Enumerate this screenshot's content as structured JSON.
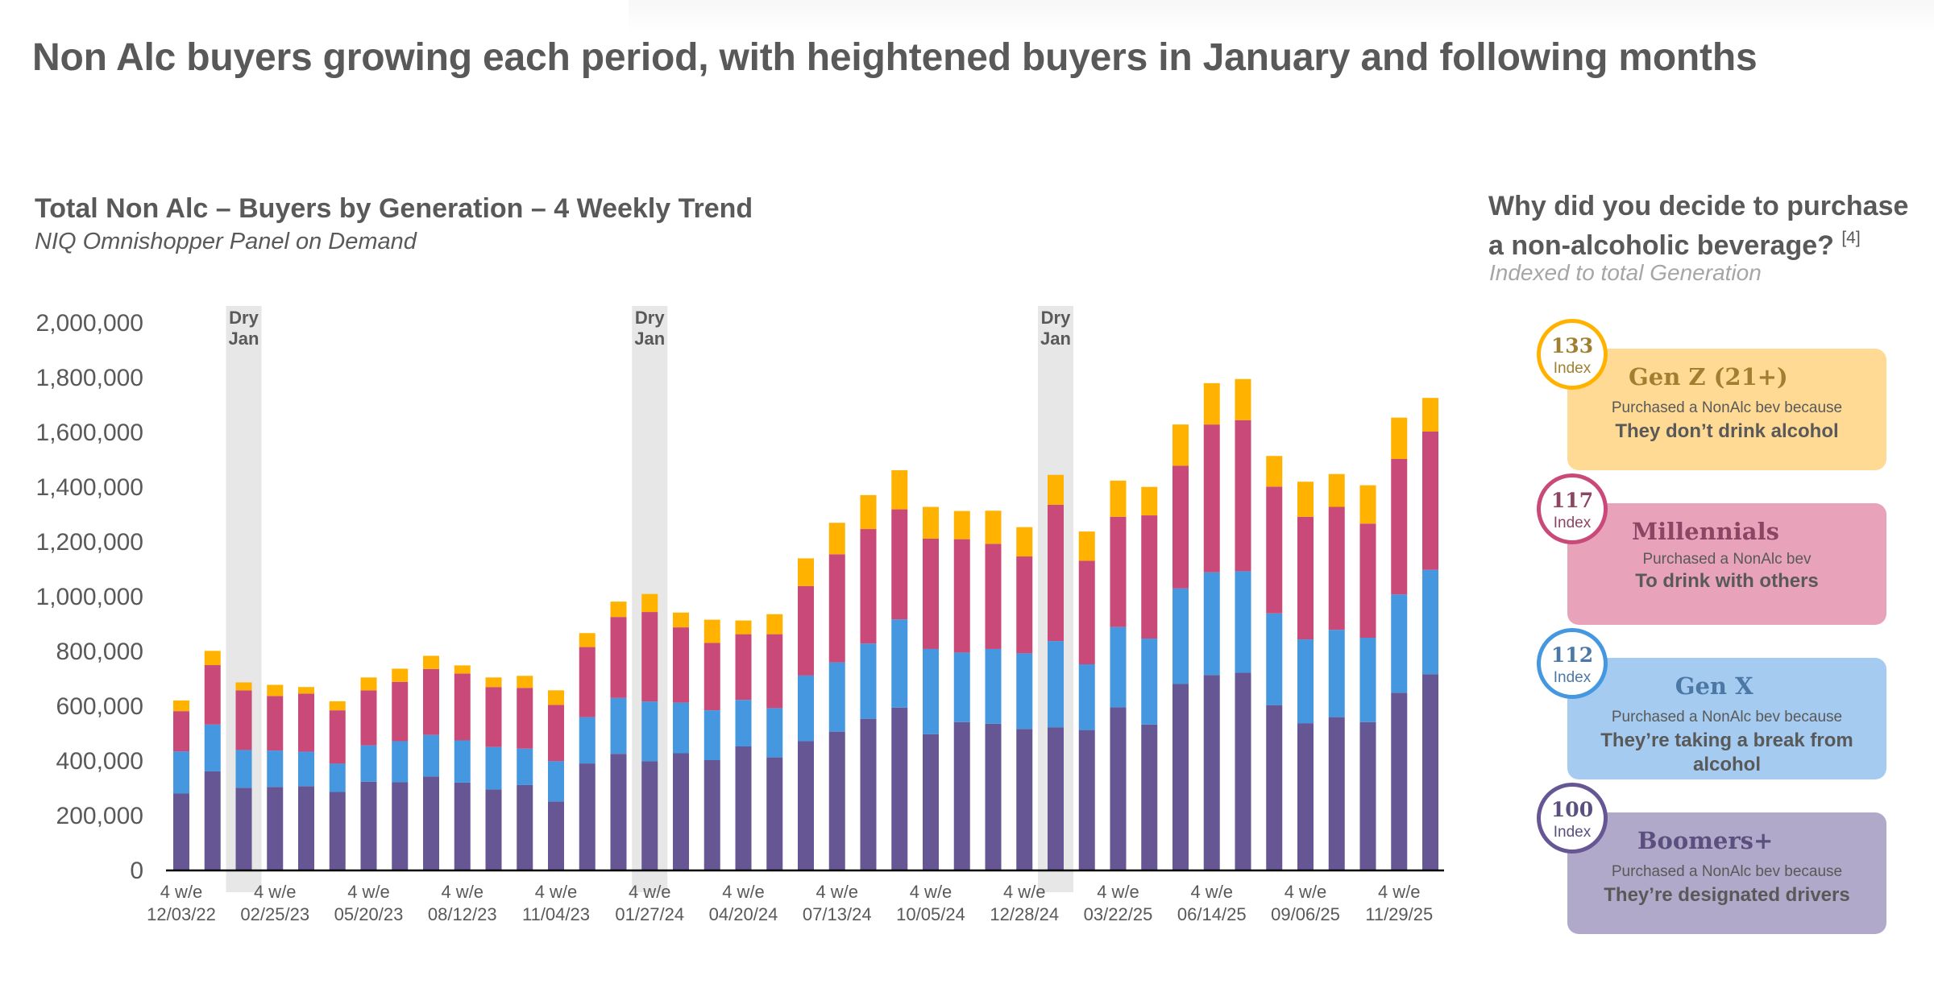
{
  "headline": "Non Alc buyers growing each period, with heightened buyers in January and following months",
  "chart_data": {
    "type": "bar",
    "stacked": true,
    "title": "Total Non Alc – Buyers by Generation – 4 Weekly Trend",
    "subtitle": "NIQ Omnishopper Panel on Demand",
    "xlabel": "",
    "ylabel": "",
    "ylim": [
      0,
      2000000
    ],
    "yticks": [
      0,
      200000,
      400000,
      600000,
      800000,
      1000000,
      1200000,
      1400000,
      1600000,
      1800000,
      2000000
    ],
    "ytick_labels": [
      "0",
      "200,000",
      "400,000",
      "600,000",
      "800,000",
      "1,000,000",
      "1,200,000",
      "1,400,000",
      "1,600,000",
      "1,800,000",
      "2,000,000"
    ],
    "grid": false,
    "legend": "none",
    "x_tick_prefix": "4 w/e",
    "x_tick_labels": [
      {
        "index": 0,
        "date": "12/03/22"
      },
      {
        "index": 3,
        "date": "02/25/23"
      },
      {
        "index": 6,
        "date": "05/20/23"
      },
      {
        "index": 9,
        "date": "08/12/23"
      },
      {
        "index": 12,
        "date": "11/04/23"
      },
      {
        "index": 15,
        "date": "01/27/24"
      },
      {
        "index": 18,
        "date": "04/20/24"
      },
      {
        "index": 21,
        "date": "07/13/24"
      },
      {
        "index": 24,
        "date": "10/05/24"
      },
      {
        "index": 27,
        "date": "12/28/24"
      },
      {
        "index": 30,
        "date": "03/22/25"
      },
      {
        "index": 33,
        "date": "06/14/25"
      },
      {
        "index": 36,
        "date": "09/06/25"
      },
      {
        "index": 39,
        "date": "11/29/25"
      }
    ],
    "annotations": [
      {
        "label_line1": "Dry",
        "label_line2": "Jan",
        "index": 2
      },
      {
        "label_line1": "Dry",
        "label_line2": "Jan",
        "index": 15
      },
      {
        "label_line1": "Dry",
        "label_line2": "Jan",
        "index": 28
      }
    ],
    "bar_count": 41,
    "series": [
      {
        "name": "Boomers+",
        "color": "#665693",
        "values": [
          278000,
          359000,
          299000,
          302000,
          305000,
          284000,
          321000,
          319000,
          340000,
          318000,
          293000,
          309000,
          249000,
          388000,
          423000,
          396000,
          425000,
          400000,
          450000,
          410000,
          469000,
          504000,
          551000,
          592000,
          495000,
          539000,
          533000,
          514000,
          520000,
          510000,
          593000,
          530000,
          678000,
          711000,
          719000,
          601000,
          535000,
          557000,
          539000,
          646000,
          714000
        ]
      },
      {
        "name": "Gen X",
        "color": "#4597E0",
        "values": [
          154000,
          171000,
          138000,
          133000,
          126000,
          103000,
          133000,
          150000,
          152000,
          154000,
          155000,
          133000,
          147000,
          169000,
          204000,
          218000,
          185000,
          182000,
          170000,
          180000,
          240000,
          253000,
          275000,
          322000,
          311000,
          254000,
          273000,
          276000,
          315000,
          240000,
          293000,
          314000,
          349000,
          375000,
          371000,
          335000,
          306000,
          319000,
          308000,
          359000,
          381000
        ]
      },
      {
        "name": "Millennials",
        "color": "#C94A79",
        "values": [
          147000,
          217000,
          218000,
          199000,
          212000,
          195000,
          201000,
          217000,
          241000,
          244000,
          219000,
          222000,
          206000,
          256000,
          296000,
          327000,
          275000,
          246000,
          240000,
          270000,
          327000,
          395000,
          418000,
          402000,
          403000,
          414000,
          384000,
          354000,
          498000,
          378000,
          403000,
          450000,
          448000,
          540000,
          552000,
          463000,
          448000,
          449000,
          417000,
          495000,
          505000
        ]
      },
      {
        "name": "Gen Z (21+)",
        "color": "#FFB300",
        "values": [
          39000,
          52000,
          29000,
          41000,
          24000,
          33000,
          47000,
          48000,
          48000,
          30000,
          35000,
          44000,
          53000,
          51000,
          56000,
          66000,
          54000,
          85000,
          50000,
          73000,
          101000,
          115000,
          124000,
          143000,
          116000,
          103000,
          121000,
          107000,
          109000,
          107000,
          132000,
          104000,
          151000,
          151000,
          150000,
          112000,
          128000,
          120000,
          140000,
          151000,
          123000
        ]
      }
    ]
  },
  "side_panel": {
    "title_line1": "Why did you decide to purchase",
    "title_line2": "a non-alcoholic beverage?",
    "footnote": "[4]",
    "subtitle": "Indexed to total Generation",
    "cards": [
      {
        "index_value": "133",
        "index_label": "Index",
        "generation": "Gen Z (21+)",
        "line1": "Purchased a NonAlc bev because",
        "line2": "They don’t drink alcohol",
        "ring_color": "#FFB300",
        "card_color": "#FFDA94",
        "name_color": "#A08030",
        "num_color": "#A08030"
      },
      {
        "index_value": "117",
        "index_label": "Index",
        "generation": "Millennials",
        "line1": "Purchased a NonAlc bev",
        "line2": "To drink with others",
        "ring_color": "#C94A79",
        "card_color": "#E8A3BB",
        "name_color": "#8C4563",
        "num_color": "#8C4563"
      },
      {
        "index_value": "112",
        "index_label": "Index",
        "generation": "Gen X",
        "line1": "Purchased a NonAlc bev because",
        "line2": "They’re taking a break from alcohol",
        "ring_color": "#4597E0",
        "card_color": "#A5CBF0",
        "name_color": "#4C78A6",
        "num_color": "#4C78A6"
      },
      {
        "index_value": "100",
        "index_label": "Index",
        "generation": "Boomers+",
        "line1": "Purchased a NonAlc bev because",
        "line2": "They’re designated drivers",
        "ring_color": "#665693",
        "card_color": "#B0A9C9",
        "name_color": "#5A4F7F",
        "num_color": "#5A4F7F"
      }
    ]
  }
}
